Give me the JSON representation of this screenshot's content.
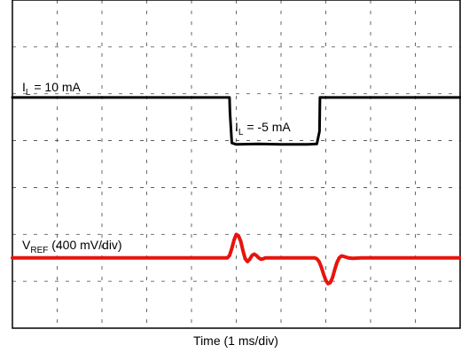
{
  "chart_data": {
    "type": "line",
    "title": "",
    "xlabel": "Time (1 ms/div)",
    "ylabel": "",
    "grid": true,
    "grid_style": "dashed",
    "x_divisions": 10,
    "y_divisions": 7,
    "xlim": [
      0,
      10
    ],
    "ylim": [
      0,
      7
    ],
    "series": [
      {
        "name_main": "I",
        "name_sub": "L",
        "name_rest": " = 10 mA",
        "color": "#000000",
        "x": [
          0,
          4.85,
          4.86,
          4.9,
          5.0,
          5.5,
          6.0,
          6.6,
          6.8,
          6.86,
          6.87,
          10
        ],
        "y": [
          4.92,
          4.92,
          4.6,
          3.95,
          3.92,
          3.93,
          3.92,
          3.92,
          3.93,
          4.2,
          4.92,
          4.92
        ]
      },
      {
        "name_main": "V",
        "name_sub": "REF",
        "name_rest": " (400 mV/div)",
        "color": "#e8140c",
        "x": [
          0,
          4.8,
          4.85,
          4.9,
          4.95,
          5.0,
          5.05,
          5.1,
          5.15,
          5.2,
          5.25,
          5.3,
          5.35,
          5.4,
          5.45,
          5.5,
          5.55,
          5.6,
          5.65,
          5.7,
          5.8,
          5.9,
          6.0,
          6.2,
          6.4,
          6.6,
          6.75,
          6.8,
          6.85,
          6.9,
          6.95,
          7.0,
          7.05,
          7.1,
          7.15,
          7.2,
          7.25,
          7.3,
          7.35,
          7.4,
          7.5,
          7.6,
          7.8,
          8.0,
          8.5,
          9.0,
          9.5,
          10
        ],
        "y": [
          1.5,
          1.5,
          1.55,
          1.7,
          1.88,
          2.0,
          1.97,
          1.85,
          1.65,
          1.48,
          1.42,
          1.47,
          1.55,
          1.58,
          1.55,
          1.5,
          1.47,
          1.48,
          1.5,
          1.5,
          1.5,
          1.5,
          1.5,
          1.5,
          1.5,
          1.5,
          1.5,
          1.48,
          1.42,
          1.3,
          1.15,
          1.02,
          0.95,
          0.97,
          1.08,
          1.25,
          1.4,
          1.5,
          1.54,
          1.53,
          1.5,
          1.49,
          1.5,
          1.5,
          1.5,
          1.5,
          1.5,
          1.5
        ]
      }
    ],
    "annotations": [
      {
        "text_main": "I",
        "text_sub": "L",
        "text_rest": " = -5 mA",
        "x": 5.0,
        "y": 4.45
      }
    ]
  }
}
